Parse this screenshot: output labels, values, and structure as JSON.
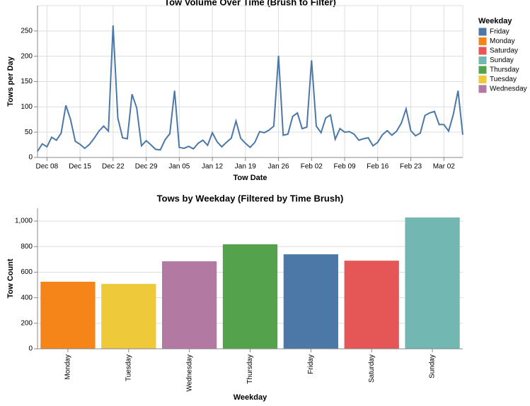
{
  "chart_data": [
    {
      "type": "line",
      "title": "Tow Volume Over Time (Brush to Filter)",
      "x_label": "Tow Date",
      "y_label": "Tows per Day",
      "color": "#4c78a8",
      "grid": true,
      "x": [
        "Dec 06",
        "Dec 07",
        "Dec 08",
        "Dec 09",
        "Dec 10",
        "Dec 11",
        "Dec 12",
        "Dec 13",
        "Dec 14",
        "Dec 15",
        "Dec 16",
        "Dec 17",
        "Dec 18",
        "Dec 19",
        "Dec 20",
        "Dec 21",
        "Dec 22",
        "Dec 23",
        "Dec 24",
        "Dec 25",
        "Dec 26",
        "Dec 27",
        "Dec 28",
        "Dec 29",
        "Dec 30",
        "Dec 31",
        "Jan 01",
        "Jan 02",
        "Jan 03",
        "Jan 04",
        "Jan 05",
        "Jan 06",
        "Jan 07",
        "Jan 08",
        "Jan 09",
        "Jan 10",
        "Jan 11",
        "Jan 12",
        "Jan 13",
        "Jan 14",
        "Jan 15",
        "Jan 16",
        "Jan 17",
        "Jan 18",
        "Jan 19",
        "Jan 20",
        "Jan 21",
        "Jan 22",
        "Jan 23",
        "Jan 24",
        "Jan 25",
        "Jan 26",
        "Jan 27",
        "Jan 28",
        "Jan 29",
        "Jan 30",
        "Jan 31",
        "Feb 01",
        "Feb 02",
        "Feb 03",
        "Feb 04",
        "Feb 05",
        "Feb 06",
        "Feb 07",
        "Feb 08",
        "Feb 09",
        "Feb 10",
        "Feb 11",
        "Feb 12",
        "Feb 13",
        "Feb 14",
        "Feb 15",
        "Feb 16",
        "Feb 17",
        "Feb 18",
        "Feb 19",
        "Feb 20",
        "Feb 21",
        "Feb 22",
        "Feb 23",
        "Feb 24",
        "Feb 25",
        "Feb 26",
        "Feb 27",
        "Feb 28",
        "Mar 01",
        "Mar 02",
        "Mar 03",
        "Mar 04",
        "Mar 05",
        "Mar 06"
      ],
      "values": [
        12,
        27,
        21,
        40,
        34,
        48,
        103,
        75,
        32,
        26,
        18,
        26,
        38,
        52,
        62,
        52,
        261,
        78,
        39,
        37,
        125,
        98,
        23,
        33,
        25,
        16,
        15,
        35,
        47,
        132,
        20,
        18,
        22,
        17,
        28,
        34,
        24,
        49,
        31,
        21,
        30,
        38,
        72,
        38,
        28,
        20,
        30,
        51,
        49,
        54,
        62,
        201,
        44,
        46,
        81,
        88,
        57,
        60,
        192,
        62,
        49,
        78,
        84,
        36,
        57,
        50,
        51,
        46,
        34,
        37,
        39,
        23,
        30,
        45,
        53,
        44,
        52,
        68,
        96,
        53,
        43,
        48,
        83,
        88,
        91,
        65,
        65,
        52,
        85,
        132,
        45
      ],
      "xticks": [
        "Dec 08",
        "Dec 15",
        "Dec 22",
        "Dec 29",
        "Jan 05",
        "Jan 12",
        "Jan 19",
        "Jan 26",
        "Feb 02",
        "Feb 09",
        "Feb 16",
        "Feb 23",
        "Mar 02"
      ],
      "ylim": [
        0,
        300
      ],
      "yticks": [
        0,
        50,
        100,
        150,
        200,
        250
      ]
    },
    {
      "type": "bar",
      "title": "Tows by Weekday (Filtered by Time Brush)",
      "x_label": "Weekday",
      "y_label": "Tow Count",
      "grid": true,
      "categories": [
        "Monday",
        "Tuesday",
        "Wednesday",
        "Thursday",
        "Friday",
        "Saturday",
        "Sunday"
      ],
      "values": [
        525,
        508,
        685,
        818,
        740,
        690,
        1028
      ],
      "colors": [
        "#f58518",
        "#eeca3b",
        "#b279a2",
        "#54a24b",
        "#4c78a8",
        "#e45756",
        "#72b7b2"
      ],
      "ylim": [
        0,
        1100
      ],
      "yticks": [
        0,
        200,
        400,
        600,
        800,
        {
          "value": 1000,
          "label": "1,000"
        }
      ]
    }
  ],
  "legend": {
    "title": "Weekday",
    "items": [
      {
        "name": "Friday",
        "color": "#4c78a8"
      },
      {
        "name": "Monday",
        "color": "#f58518"
      },
      {
        "name": "Saturday",
        "color": "#e45756"
      },
      {
        "name": "Sunday",
        "color": "#72b7b2"
      },
      {
        "name": "Thursday",
        "color": "#54a24b"
      },
      {
        "name": "Tuesday",
        "color": "#eeca3b"
      },
      {
        "name": "Wednesday",
        "color": "#b279a2"
      }
    ]
  }
}
